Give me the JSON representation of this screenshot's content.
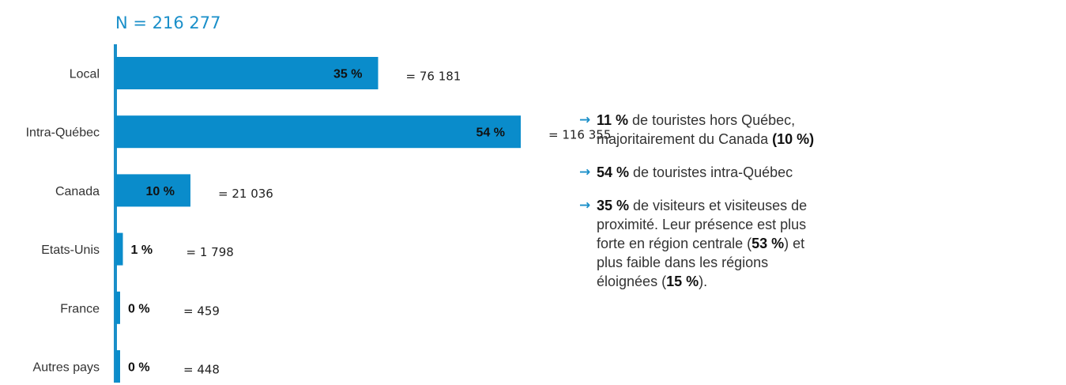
{
  "colors": {
    "bar": "#0a8ccb",
    "axis": "#1a8fc9",
    "accent": "#1a8fc9",
    "label": "#111111"
  },
  "chart_data": {
    "type": "bar",
    "orientation": "horizontal",
    "title": "N = 216 277",
    "categories": [
      "Local",
      "Intra-Québec",
      "Canada",
      "Etats-Unis",
      "France",
      "Autres pays"
    ],
    "values": [
      35,
      54,
      10,
      1,
      0,
      0
    ],
    "value_labels": [
      "35 %",
      "54 %",
      "10 %",
      "1 %",
      "0 %",
      "0 %"
    ],
    "counts": [
      "= 76 181",
      "= 116 355",
      "= 21 036",
      "= 1 798",
      "= 459",
      "= 448"
    ],
    "xlim": [
      0,
      100
    ],
    "grid": false,
    "xlabel": "",
    "ylabel": ""
  },
  "notes": [
    {
      "icon": "arrow-right-icon",
      "parts": [
        {
          "b": "11 %"
        },
        {
          "t": " de touristes hors Québec, majoritairement du Canada "
        },
        {
          "b": "(10 %)"
        }
      ]
    },
    {
      "icon": "arrow-right-icon",
      "parts": [
        {
          "b": "54 %"
        },
        {
          "t": " de touristes intra-Québec"
        }
      ]
    },
    {
      "icon": "arrow-right-icon",
      "parts": [
        {
          "b": "35 %"
        },
        {
          "t": " de visiteurs et visiteuses de proximité. Leur présence est plus forte en région centrale ("
        },
        {
          "b": "53 %"
        },
        {
          "t": ") et plus faible dans les régions éloignées ("
        },
        {
          "b": "15 %"
        },
        {
          "t": ")."
        }
      ]
    }
  ]
}
